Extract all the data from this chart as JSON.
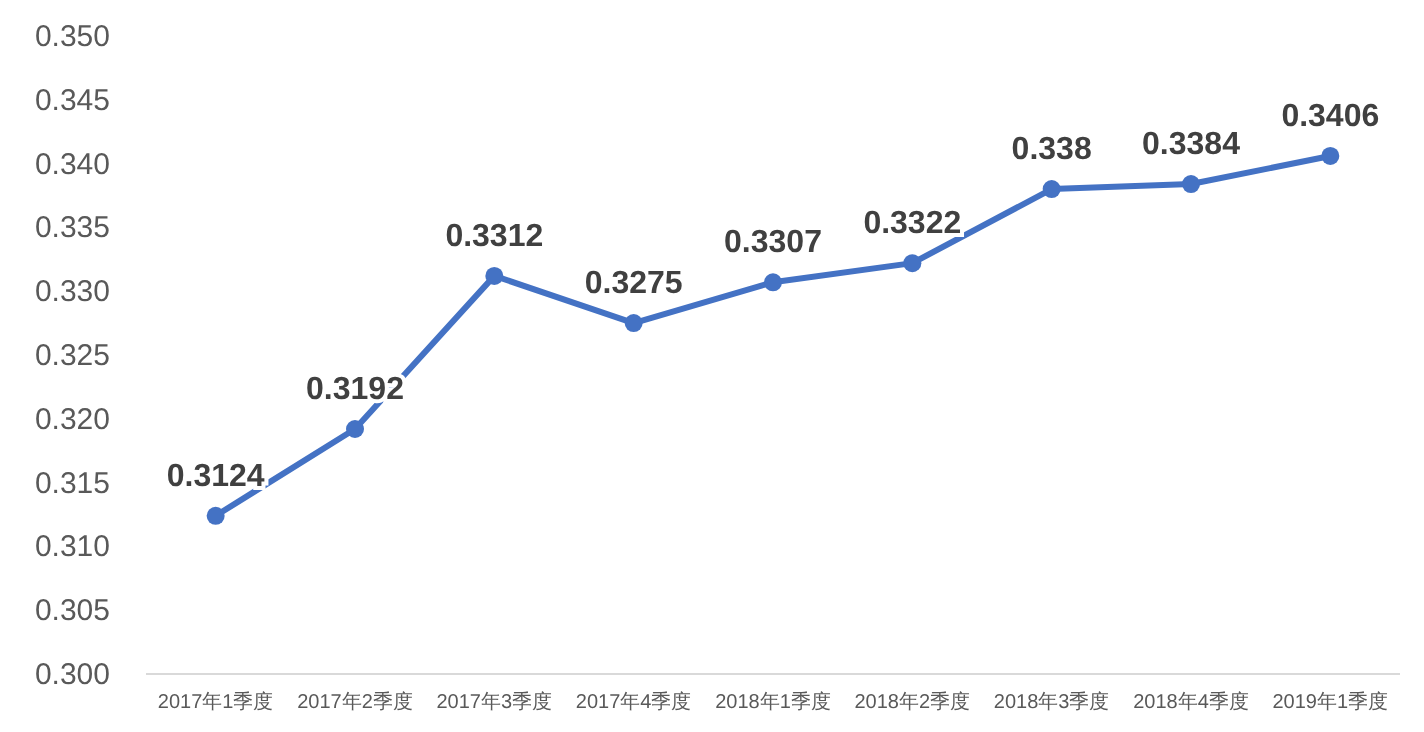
{
  "chart_data": {
    "type": "line",
    "categories": [
      "2017年1季度",
      "2017年2季度",
      "2017年3季度",
      "2017年4季度",
      "2018年1季度",
      "2018年2季度",
      "2018年3季度",
      "2018年4季度",
      "2019年1季度"
    ],
    "series": [
      {
        "color": "#4472c4",
        "values": [
          0.3124,
          0.3192,
          0.3312,
          0.3275,
          0.3307,
          0.3322,
          0.338,
          0.3384,
          0.3406
        ]
      }
    ],
    "ylim": [
      0.3,
      0.35
    ],
    "yticks": [
      {
        "value": 0.3,
        "label": "0.300"
      },
      {
        "value": 0.305,
        "label": "0.305"
      },
      {
        "value": 0.31,
        "label": "0.310"
      },
      {
        "value": 0.315,
        "label": "0.315"
      },
      {
        "value": 0.32,
        "label": "0.320"
      },
      {
        "value": 0.325,
        "label": "0.325"
      },
      {
        "value": 0.33,
        "label": "0.330"
      },
      {
        "value": 0.335,
        "label": "0.335"
      },
      {
        "value": 0.34,
        "label": "0.340"
      },
      {
        "value": 0.345,
        "label": "0.345"
      },
      {
        "value": 0.35,
        "label": "0.350"
      }
    ],
    "grid": false,
    "marker": "circle",
    "line_style": "solid",
    "data_labels": true
  }
}
